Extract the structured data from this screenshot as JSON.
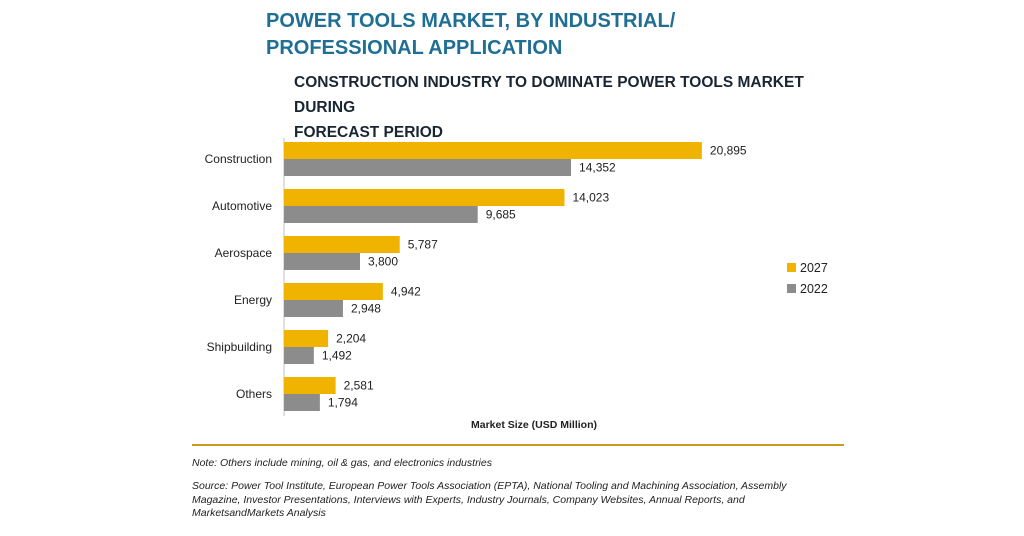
{
  "header": {
    "title_line1": "POWER TOOLS MARKET, BY INDUSTRIAL/",
    "title_line2": "PROFESSIONAL APPLICATION",
    "subtitle_line1": "CONSTRUCTION INDUSTRY TO DOMINATE POWER TOOLS MARKET DURING",
    "subtitle_line2": "FORECAST PERIOD"
  },
  "footer": {
    "note": "Note: Others include mining, oil & gas, and electronics industries",
    "source_line1": "Source: Power Tool Institute, European Power Tools Association (EPTA), National Tooling and Machining Association, Assembly",
    "source_line2": "Magazine, Investor Presentations, Interviews with Experts, Industry Journals, Company Websites, Annual Reports, and",
    "source_line3": "MarketsandMarkets Analysis"
  },
  "chart_data": {
    "type": "bar",
    "orientation": "horizontal",
    "categories": [
      "Construction",
      "Automotive",
      "Aerospace",
      "Energy",
      "Shipbuilding",
      "Others"
    ],
    "series": [
      {
        "name": "2027",
        "values": [
          20895,
          14023,
          5787,
          4942,
          2204,
          2581
        ],
        "labels": [
          "20,895",
          "14,023",
          "5,787",
          "4,942",
          "2,204",
          "2,581"
        ],
        "color": "#f0b400"
      },
      {
        "name": "2022",
        "values": [
          14352,
          9685,
          3800,
          2948,
          1492,
          1794
        ],
        "labels": [
          "14,352",
          "9,685",
          "3,800",
          "2,948",
          "1,492",
          "1,794"
        ],
        "color": "#8c8c8c"
      }
    ],
    "xlabel": "Market Size (USD Million)",
    "ylabel": "",
    "xlim": [
      0,
      22000
    ],
    "grid": false,
    "legend_position": "right"
  }
}
